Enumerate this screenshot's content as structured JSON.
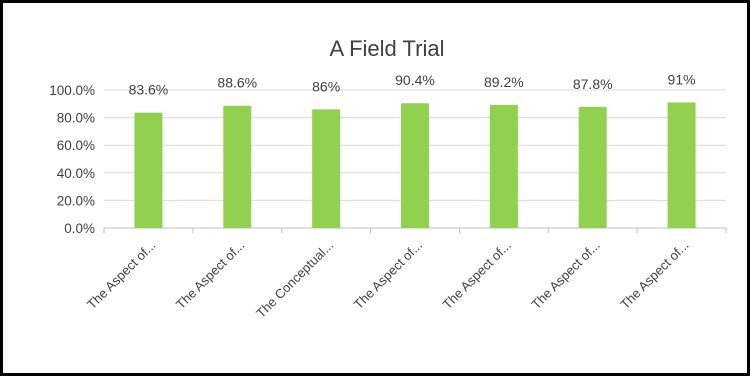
{
  "chart_data": {
    "type": "bar",
    "title": "A Field Trial",
    "xlabel": "",
    "ylabel": "",
    "categories": [
      "The Aspect of...",
      "The Aspect of...",
      "The Conceptual...",
      "The Aspect of...",
      "The Aspect of...",
      "The Aspect of...",
      "The Aspect of..."
    ],
    "values": [
      83.6,
      88.6,
      86,
      90.4,
      89.2,
      87.8,
      91
    ],
    "data_labels": [
      "83.6%",
      "88.6%",
      "86%",
      "90.4%",
      "89.2%",
      "87.8%",
      "91%"
    ],
    "ylim": [
      0,
      100
    ],
    "yticks": [
      0,
      20,
      40,
      60,
      80,
      100
    ],
    "ytick_labels": [
      "0.0%",
      "20.0%",
      "40.0%",
      "60.0%",
      "80.0%",
      "100.0%"
    ],
    "grid": true,
    "legend": "none",
    "colors": {
      "bar": "#92d050",
      "frame": "#000000",
      "text": "#404040",
      "grid": "#d9d9d9"
    }
  }
}
